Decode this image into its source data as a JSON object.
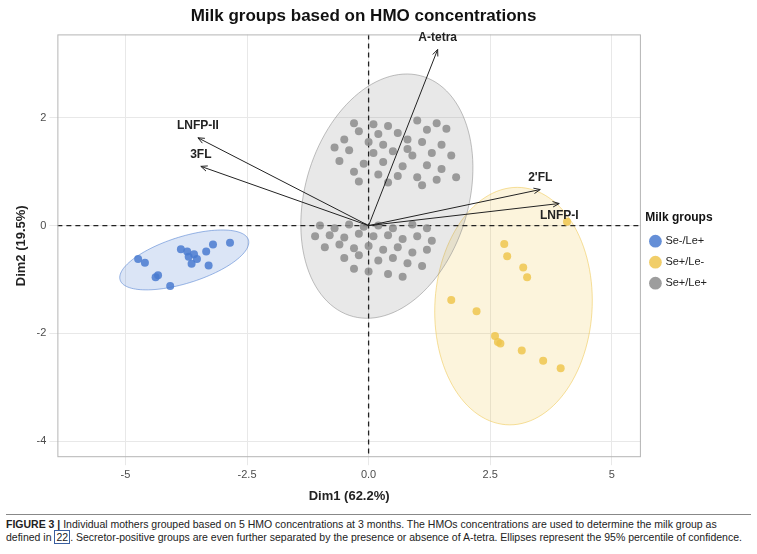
{
  "chart_data": {
    "type": "scatter",
    "title": "Milk groups based on HMO concentrations",
    "x_label": "Dim1 (62.2%)",
    "y_label": "Dim2 (19.5%)",
    "xlim": [
      -6.4,
      5.6
    ],
    "ylim": [
      -4.3,
      3.55
    ],
    "xticks": [
      -5,
      -2.5,
      {
        "value": 0,
        "label": "0.0"
      },
      2.5,
      5
    ],
    "yticks": [
      -4,
      -2,
      0,
      2
    ],
    "grid": true,
    "legend": "right",
    "legend_title": "Milk groups",
    "series": [
      {
        "name": "Se-/Le+",
        "color": "#4a7bd0",
        "marker": "circle",
        "x": [
          -2.85,
          -3.34,
          -3.86,
          -3.73,
          -3.59,
          -3.53,
          -3.7,
          -3.64,
          -3.29,
          -4.74,
          -4.6,
          -4.33,
          -4.38,
          -4.08,
          -3.2
        ],
        "y": [
          -0.32,
          -0.48,
          -0.44,
          -0.48,
          -0.53,
          -0.62,
          -0.58,
          -0.71,
          -0.74,
          -0.62,
          -0.69,
          -0.92,
          -0.96,
          -1.12,
          -0.35
        ]
      },
      {
        "name": "Se+/Le-",
        "color": "#eec64f",
        "marker": "circle",
        "x": [
          4.08,
          2.79,
          2.85,
          3.18,
          3.26,
          1.7,
          2.22,
          2.6,
          2.66,
          2.71,
          3.15,
          3.59,
          3.95
        ],
        "y": [
          0.07,
          -0.34,
          -0.57,
          -0.78,
          -0.96,
          -1.38,
          -1.59,
          -2.05,
          -2.16,
          -2.19,
          -2.32,
          -2.51,
          -2.65
        ]
      },
      {
        "name": "Se+/Le+",
        "color": "#8c8c8c",
        "marker": "circle",
        "x": [
          -0.3,
          0.1,
          0.4,
          1.0,
          1.4,
          -0.2,
          0.2,
          0.6,
          1.2,
          1.6,
          -0.5,
          0.0,
          0.3,
          0.8,
          1.1,
          1.5,
          -0.4,
          0.1,
          0.5,
          0.9,
          1.3,
          1.7,
          -0.6,
          -0.1,
          0.3,
          0.7,
          1.2,
          1.5,
          -0.3,
          0.2,
          0.6,
          1.0,
          1.4,
          1.8,
          0.4,
          1.1,
          -0.2,
          0.8,
          -0.7,
          -1.0,
          -0.7,
          -0.4,
          -0.1,
          0.2,
          0.5,
          0.9,
          1.2,
          -1.1,
          -0.8,
          -0.5,
          -0.2,
          0.1,
          0.4,
          0.7,
          1.0,
          1.3,
          -0.9,
          -0.6,
          -0.3,
          0.0,
          0.3,
          0.6,
          0.9,
          1.2,
          -0.5,
          -0.2,
          0.2,
          0.5,
          0.8,
          1.1,
          0.0,
          0.4,
          0.7,
          -0.3
        ],
        "y": [
          1.9,
          1.88,
          1.85,
          1.95,
          1.9,
          1.75,
          1.7,
          1.72,
          1.78,
          1.8,
          1.6,
          1.55,
          1.5,
          1.6,
          1.55,
          1.5,
          1.4,
          1.35,
          1.38,
          1.3,
          1.35,
          1.3,
          1.2,
          1.15,
          1.18,
          1.1,
          1.12,
          1.05,
          1.0,
          0.95,
          0.92,
          0.9,
          0.85,
          0.9,
          0.8,
          0.75,
          0.82,
          1.42,
          1.45,
          0.0,
          -0.05,
          0.02,
          -0.02,
          0.0,
          -0.05,
          0.02,
          -0.05,
          -0.2,
          -0.18,
          -0.22,
          -0.15,
          -0.2,
          -0.18,
          -0.25,
          -0.2,
          -0.28,
          -0.4,
          -0.35,
          -0.42,
          -0.38,
          -0.45,
          -0.4,
          -0.5,
          -0.45,
          -0.6,
          -0.55,
          -0.65,
          -0.6,
          -0.7,
          -0.75,
          -0.85,
          -0.9,
          -0.95,
          -0.8
        ]
      }
    ],
    "loadings": [
      {
        "label": "A-tetra",
        "x": 1.42,
        "y": 3.27
      },
      {
        "label": "LNFP-II",
        "x": -3.51,
        "y": 1.63
      },
      {
        "label": "3FL",
        "x": -3.45,
        "y": 1.1
      },
      {
        "label": "2'FL",
        "x": 3.53,
        "y": 0.67
      },
      {
        "label": "LNFP-I",
        "x": 3.92,
        "y": 0.41
      }
    ],
    "caption": {
      "label": "FIGURE 3 |",
      "text_before": "Individual mothers grouped based on 5 HMO concentrations at 3 months. The HMOs concentrations are used to determine the milk group as defined in",
      "reference": "22",
      "text_after": ". Secretor-positive groups are even further separated by the presence or absence of A-tetra. Ellipses represent the 95% percentile of confidence."
    }
  }
}
